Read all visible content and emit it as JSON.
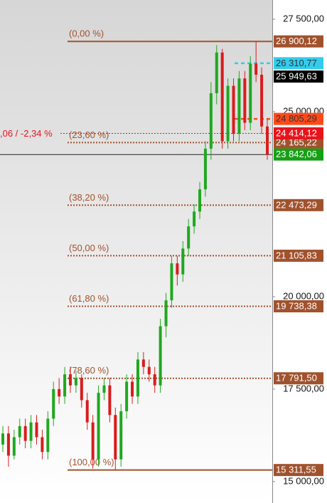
{
  "chart_data": {
    "type": "candlestick",
    "open": [
      16000,
      16300,
      15700,
      16200,
      16500,
      16100,
      16600,
      16200,
      15800,
      16700,
      17500,
      17300,
      17900,
      17600,
      17800,
      17200,
      16600,
      15600,
      17400,
      17600,
      16800,
      15600,
      16900,
      17700,
      17300,
      18300,
      18100,
      17900,
      17600,
      19200,
      19900,
      20900,
      20600,
      21300,
      21900,
      22300,
      22900,
      24000,
      25500,
      26600,
      24200,
      25700,
      24400,
      25900,
      24700,
      26300,
      26000,
      24600
    ],
    "high": [
      16500,
      16500,
      16400,
      16700,
      16700,
      16800,
      16800,
      16400,
      16900,
      17700,
      17800,
      18100,
      18100,
      18000,
      17900,
      17400,
      16800,
      17600,
      17800,
      17800,
      17000,
      17100,
      17900,
      17900,
      18500,
      18500,
      18300,
      18100,
      19400,
      20100,
      21100,
      21100,
      21500,
      22100,
      22500,
      23100,
      24200,
      25800,
      26800,
      26700,
      25900,
      25900,
      26100,
      26100,
      26500,
      26900,
      26200,
      24800
    ],
    "low": [
      15800,
      15400,
      15600,
      16000,
      15900,
      15900,
      16000,
      15600,
      15600,
      16500,
      17100,
      17100,
      17400,
      17400,
      17000,
      16400,
      15350,
      15400,
      17200,
      16600,
      15320,
      15400,
      16700,
      17100,
      17100,
      17900,
      17700,
      17400,
      17400,
      18900,
      19700,
      20300,
      20400,
      21100,
      21700,
      22100,
      22700,
      23700,
      25200,
      24000,
      24000,
      24200,
      24200,
      24500,
      24500,
      25800,
      24400,
      23700
    ],
    "close": [
      16300,
      15700,
      16200,
      16500,
      16100,
      16600,
      16200,
      15800,
      16700,
      17500,
      17300,
      17900,
      17600,
      17800,
      17200,
      16600,
      15600,
      17400,
      17600,
      16800,
      15600,
      16900,
      17700,
      17300,
      18300,
      18100,
      17900,
      17600,
      19200,
      19900,
      20900,
      20600,
      21300,
      21900,
      22300,
      22900,
      24000,
      25500,
      26600,
      24200,
      25700,
      24400,
      25900,
      24700,
      26300,
      26000,
      24600,
      23842.06
    ],
    "up_color": "#1fa81f",
    "down_color": "#d91c1c",
    "ylim": [
      14420,
      28020
    ],
    "yticks": [
      {
        "value": 15000,
        "label": "15 000,00"
      },
      {
        "value": 17500,
        "label": "17 500,00"
      },
      {
        "value": 20000,
        "label": "20 000,00"
      },
      {
        "value": 25000,
        "label": "25 000,00"
      },
      {
        "value": 27500,
        "label": "27 500,00"
      }
    ],
    "fib_color": "#a0522d",
    "fib_levels": [
      {
        "name": "(0,00 %)",
        "value": 26900.12,
        "label": "26 900,12",
        "style": "solid"
      },
      {
        "name": "(23,60 %)",
        "value": 24165.22,
        "label": "24 165,22",
        "style": "dotted"
      },
      {
        "name": "(38,20 %)",
        "value": 22473.29,
        "label": "22 473,29",
        "style": "dotted"
      },
      {
        "name": "(50,00 %)",
        "value": 21105.83,
        "label": "21 105,83",
        "style": "dotted"
      },
      {
        "name": "(61,80 %)",
        "value": 19738.38,
        "label": "19 738,38",
        "style": "dotted"
      },
      {
        "name": "(78,60 %)",
        "value": 17791.5,
        "label": "17 791,50",
        "style": "dotted"
      },
      {
        "name": "(100,00 %)",
        "value": 15311.55,
        "label": "15 311,55",
        "style": "solid"
      }
    ],
    "markers": [
      {
        "value": 26310.77,
        "label": "26 310,77",
        "color": "#33ccee",
        "text_color": "#333333",
        "style": "dashed"
      },
      {
        "value": 25949.63,
        "label": "25 949,63",
        "color": "#000000",
        "text_color": "#ffffff",
        "style": "none"
      },
      {
        "value": 24805.29,
        "label": "24 805,29",
        "color": "#ff4a1c",
        "text_color": "#333333",
        "style": "dashed"
      },
      {
        "value": 24414.12,
        "label": "24 414,12",
        "color": "#e8141c",
        "text_color": "#ffffff",
        "style": "dotted"
      },
      {
        "value": 23842.06,
        "label": "23 842,06",
        "color": "#15a015",
        "text_color": "#ffffff",
        "style": "solid"
      }
    ],
    "change_label": ",06 / -2,34 %",
    "change_color": "#e8141c"
  }
}
